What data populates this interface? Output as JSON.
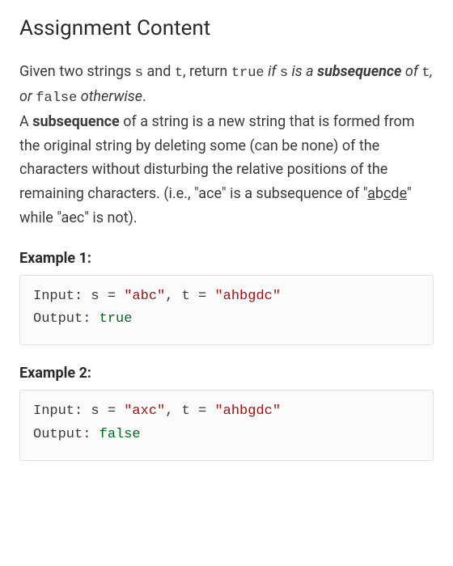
{
  "title": "Assignment Content",
  "para": {
    "p1a": "Given two strings ",
    "s": "s",
    "p1b": " and ",
    "t": "t",
    "p1c": ", return ",
    "true": "true",
    "p1d": " ",
    "ifsis": "if ",
    "sis": " is a ",
    "subseq1": "subsequence",
    "of": " of ",
    "tvar": "t",
    "comma": ", ",
    "or": "or ",
    "false": "false",
    "otherwise": " otherwise",
    "period1": ".",
    "p2a": "A ",
    "subseq2": "subsequence",
    "p2b": " of a string is a new string that is formed from the original string by deleting some (can be none) of the characters without disturbing the relative positions of the remaining characters. (i.e., \"ace\" is a subsequence of \"",
    "a_u": "a",
    "b": "b",
    "c_u": "c",
    "d": "d",
    "e_u": "e",
    "p2c": "\" while \"aec\" is not)."
  },
  "examples": [
    {
      "label": "Example 1:",
      "input_prefix": "Input: s = ",
      "s_val": "\"abc\"",
      "mid": ", t = ",
      "t_val": "\"ahbgdc\"",
      "output_prefix": "Output: ",
      "output_val": "true"
    },
    {
      "label": "Example 2:",
      "input_prefix": "Input: s = ",
      "s_val": "\"axc\"",
      "mid": ", t = ",
      "t_val": "\"ahbgdc\"",
      "output_prefix": "Output: ",
      "output_val": "false"
    }
  ],
  "colors": {
    "text": "#3a3a3a",
    "heading": "#2a2a2a",
    "string_literal": "#a31010",
    "keyword": "#006b1f",
    "code_border": "#e0e0e0",
    "code_bg": "#fcfcfc",
    "page_bg": "#ffffff"
  },
  "typography": {
    "heading_fontsize": 26,
    "body_fontsize": 18,
    "code_fontsize": 17,
    "line_height": 1.65
  }
}
